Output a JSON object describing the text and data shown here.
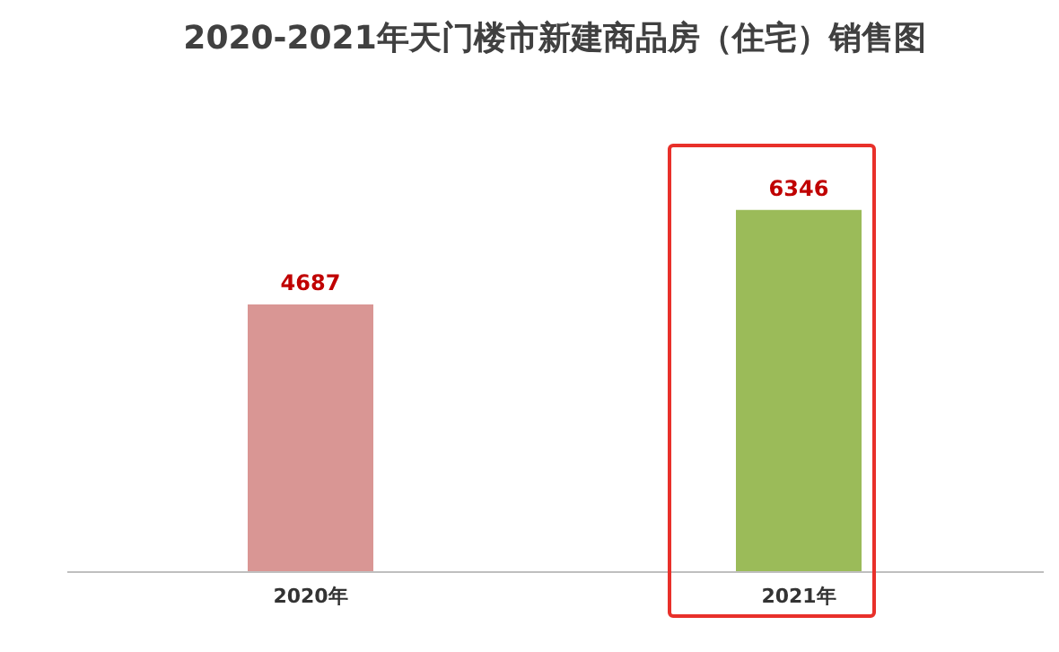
{
  "chart_data": {
    "type": "bar",
    "title": "2020-2021年天门楼市新建商品房（住宅）销售图",
    "categories": [
      "2020年",
      "2021年"
    ],
    "values": [
      4687,
      6346
    ],
    "colors": [
      "#d99694",
      "#9bbb59"
    ],
    "data_labels": true,
    "grid": false,
    "legend": false
  }
}
